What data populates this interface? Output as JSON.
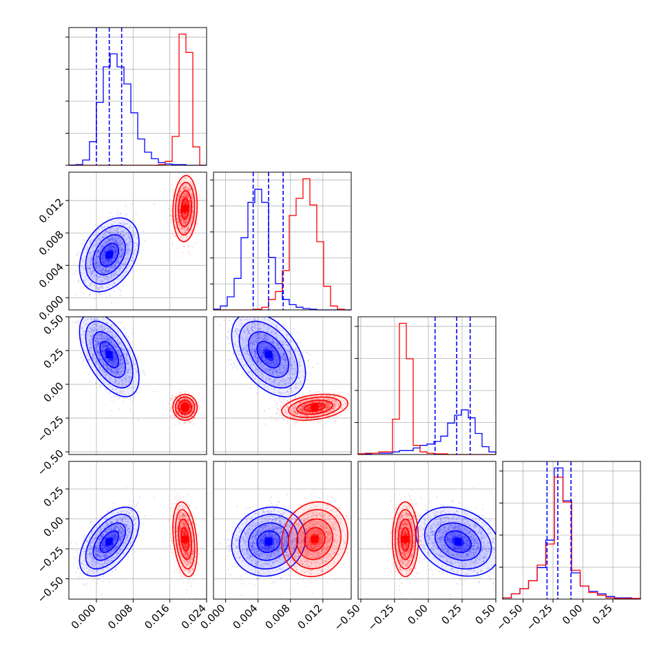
{
  "chart_data": {
    "type": "corner",
    "colors": {
      "blue": "#0000ff",
      "red": "#ff0000",
      "grid": "#b0b0b0",
      "frame": "#000000"
    },
    "grid": true,
    "parameters": [
      {
        "range": [
          -0.006,
          0.024
        ],
        "ticks": [
          0.0,
          0.008,
          0.016,
          0.024
        ],
        "tick_labels": [
          "0.000",
          "0.008",
          "0.016",
          "0.024"
        ]
      },
      {
        "range": [
          -0.0015,
          0.0155
        ],
        "ticks": [
          0.0,
          0.004,
          0.008,
          0.012
        ],
        "tick_labels": [
          "0.000",
          "0.004",
          "0.008",
          "0.012"
        ]
      },
      {
        "range": [
          -0.52,
          0.5
        ],
        "ticks": [
          -0.5,
          -0.25,
          0.0,
          0.25,
          0.5
        ],
        "tick_labels": [
          "−0.50",
          "−0.25",
          "0.00",
          "0.25",
          "0.50"
        ]
      },
      {
        "range": [
          -0.67,
          0.48
        ],
        "ticks": [
          -0.5,
          -0.25,
          0.0,
          0.25
        ],
        "tick_labels": [
          "−0.50",
          "−0.25",
          "0.00",
          "0.25"
        ]
      }
    ],
    "diagonal": [
      {
        "quantiles_blue": [
          0.0,
          0.0028,
          0.0055
        ],
        "blue": [
          0.2,
          0.5,
          4,
          18,
          48,
          75,
          85,
          75,
          62,
          40,
          20,
          10,
          5,
          2,
          1,
          0.5,
          0.5,
          0,
          0,
          0
        ],
        "red": [
          0,
          0,
          0,
          0,
          0,
          0,
          0,
          0,
          0,
          0,
          0,
          0,
          0,
          0.5,
          3,
          22,
          100,
          86,
          14,
          0
        ],
        "red_bins": [
          0.0076,
          0.0083,
          0.0145,
          0.0155,
          0.0163,
          0.0175,
          0.0185,
          0.0196,
          0.0205,
          0.0215,
          0.0225
        ]
      },
      {
        "quantiles_blue": [
          0.0034,
          0.0053,
          0.0071
        ],
        "blue": [
          0.5,
          3,
          10,
          24,
          55,
          82,
          92,
          82,
          40,
          20,
          8,
          4,
          2,
          1,
          0.5,
          0,
          0,
          0,
          0,
          0
        ],
        "red": [
          0,
          0,
          0,
          0,
          0,
          0,
          0.5,
          2,
          8,
          14,
          30,
          72,
          85,
          100,
          80,
          52,
          18,
          3,
          0.5,
          0
        ]
      },
      {
        "quantiles_blue": [
          0.05,
          0.21,
          0.31
        ],
        "blue": [
          0.5,
          0.5,
          1,
          1,
          1,
          2,
          3,
          3,
          5,
          7,
          8,
          10,
          14,
          24,
          30,
          34,
          28,
          16,
          6,
          2
        ],
        "red": [
          0.5,
          1,
          1,
          2,
          2,
          27,
          100,
          73,
          7,
          2,
          1,
          0.5,
          0.5,
          0,
          0,
          0,
          0,
          0,
          0,
          0
        ]
      },
      {
        "quantiles_blue": [
          -0.3,
          -0.21,
          -0.1
        ],
        "blue": [
          1,
          4,
          8,
          14,
          24,
          45,
          100,
          75,
          20,
          10,
          6,
          4,
          2,
          1,
          1,
          0.5
        ],
        "red": [
          1,
          4,
          8,
          14,
          26,
          42,
          93,
          74,
          22,
          10,
          5,
          3,
          1,
          0.5,
          0.5,
          0.5
        ]
      }
    ],
    "distributions": {
      "blue": {
        "mean": [
          0.0028,
          0.0053,
          0.22,
          -0.19
        ],
        "sd": [
          0.0027,
          0.0019,
          0.13,
          0.12
        ],
        "corr": [
          [
            1,
            0.35,
            -0.55,
            0.55
          ],
          [
            0.35,
            1,
            -0.45,
            0.1
          ],
          [
            -0.55,
            -0.45,
            1,
            -0.25
          ],
          [
            0.55,
            0.1,
            -0.25,
            1
          ]
        ]
      },
      "red": {
        "mean": [
          0.0193,
          0.011,
          -0.17,
          -0.17
        ],
        "sd": [
          0.0011,
          0.0017,
          0.04,
          0.13
        ],
        "corr": [
          [
            1,
            0.1,
            0.0,
            -0.3
          ],
          [
            0.1,
            1,
            0.3,
            0.1
          ],
          [
            0.0,
            0.3,
            1,
            0.0
          ],
          [
            -0.3,
            0.1,
            0.0,
            1
          ]
        ]
      }
    }
  }
}
